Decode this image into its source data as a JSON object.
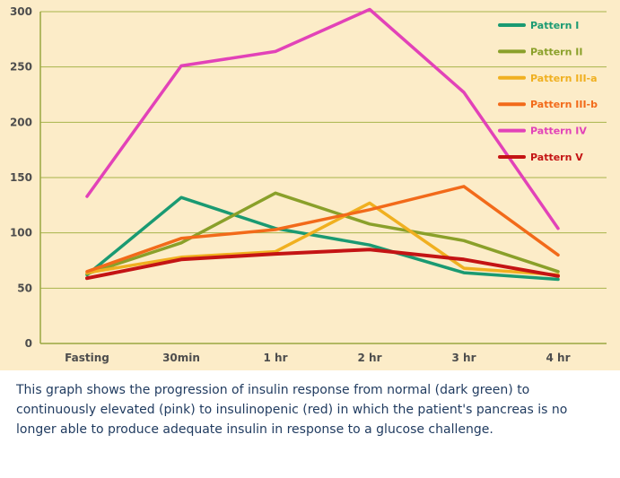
{
  "caption": "This graph shows the progression of insulin response from normal (dark green) to continuously elevated (pink) to insulinopenic (red) in which the patient's pancreas is no longer able to produce adequate  insulin in  response to a glucose challenge.",
  "chart_data": {
    "type": "line",
    "title": "",
    "xlabel": "",
    "ylabel": "",
    "categories": [
      "Fasting",
      "30min",
      "1 hr",
      "2 hr",
      "3 hr",
      "4 hr"
    ],
    "ylim": [
      0,
      300
    ],
    "yticks": [
      0,
      50,
      100,
      150,
      200,
      250,
      300
    ],
    "grid": true,
    "legend_position": "top-right",
    "series": [
      {
        "name": "Pattern I",
        "color": "#1a9a72",
        "values": [
          62,
          132,
          104,
          89,
          64,
          58
        ]
      },
      {
        "name": "Pattern II",
        "color": "#8aa02a",
        "values": [
          63,
          91,
          136,
          108,
          93,
          65
        ]
      },
      {
        "name": "Pattern III-a",
        "color": "#f0b020",
        "values": [
          64,
          78,
          83,
          127,
          68,
          62
        ]
      },
      {
        "name": "Pattern III-b",
        "color": "#f26a1a",
        "values": [
          65,
          95,
          103,
          121,
          142,
          80
        ]
      },
      {
        "name": "Pattern IV",
        "color": "#e242b8",
        "values": [
          133,
          251,
          264,
          302,
          227,
          104
        ]
      },
      {
        "name": "Pattern V",
        "color": "#c41414",
        "values": [
          59,
          76,
          81,
          85,
          76,
          61
        ]
      }
    ]
  }
}
